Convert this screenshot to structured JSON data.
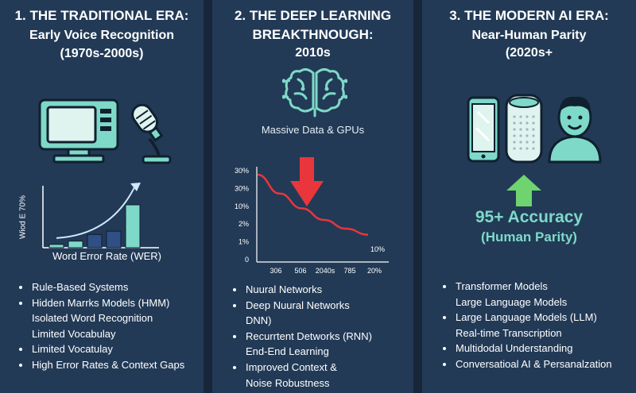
{
  "colors": {
    "background": "#1b2b3f",
    "panel": "#223a56",
    "mint": "#7ed9c8",
    "red": "#e8363c",
    "green": "#6fd36f"
  },
  "traditional": {
    "title_line1": "1. THE TRADITIONAL ERA:",
    "title_line2": "Early Voice Recognition",
    "title_line3": "(1970s-2000s)",
    "icons": [
      "computer-monitor-icon",
      "microphone-icon"
    ],
    "chart_ylabel": "Wiod E 70%",
    "chart_xlabel": "Word Error Rate (WER)",
    "chart_values": [
      1,
      2,
      4,
      5,
      13
    ],
    "bullets": [
      {
        "text": "Rule-Based Systems",
        "dot": true
      },
      {
        "text": "Hidden Marrks Models (HMM)",
        "dot": true
      },
      {
        "text": "Isolated Word Recognition",
        "dot": false
      },
      {
        "text": "Limited Vocabulay",
        "dot": false
      },
      {
        "text": "Limited Vocatulay",
        "dot": true
      },
      {
        "text": "High Error Rates & Context Gaps",
        "dot": true
      }
    ]
  },
  "deep_learning": {
    "title_line1": "2. THE DEEP LEARNING",
    "title_line2": "BREAKTHNOUGH:",
    "title_line3": "2010s",
    "icons": [
      "brain-circuit-icon",
      "down-arrow-icon"
    ],
    "icon_caption": "Massive Data & GPUs",
    "chart_yticks": [
      "30%",
      "30%",
      "10%",
      "2%",
      "1%",
      "0"
    ],
    "chart_xticks": [
      "306",
      "506",
      "2040s",
      "785",
      "20%"
    ],
    "chart_end_label": "10%",
    "curve_relative_error": [
      1.0,
      0.72,
      0.5,
      0.33,
      0.2,
      0.11
    ],
    "bullets": [
      {
        "text": "Nuural Networks",
        "dot": true
      },
      {
        "text": "Deep Nuural Networks",
        "dot": true
      },
      {
        "text": "DNN)",
        "dot": false
      },
      {
        "text": "Recurrtent Detworks (RNN)",
        "dot": true
      },
      {
        "text": "End-End Learning",
        "dot": false
      },
      {
        "text": "Improved Context &",
        "dot": true
      },
      {
        "text": "Noise Robustness",
        "dot": false
      }
    ]
  },
  "modern": {
    "title_line1": "3. THE MODERN AI ERA:",
    "title_line2": "Near-Human Parity",
    "title_line3": "(2020s+",
    "icons": [
      "smartphone-icon",
      "smart-speaker-icon",
      "person-icon",
      "up-arrow-icon"
    ],
    "accuracy_line1": "95+ Accuracy",
    "accuracy_line2": "(Human Parity)",
    "bullets": [
      {
        "text": "Transformer Models",
        "dot": true
      },
      {
        "text": "Large Language Models",
        "dot": false
      },
      {
        "text": "Large Language Models (LLM)",
        "dot": true
      },
      {
        "text": "Real-time Transcription",
        "dot": false
      },
      {
        "text": "Multidodal Understanding",
        "dot": true
      },
      {
        "text": "Conversatioal AI & Persanalzation",
        "dot": true
      }
    ]
  }
}
